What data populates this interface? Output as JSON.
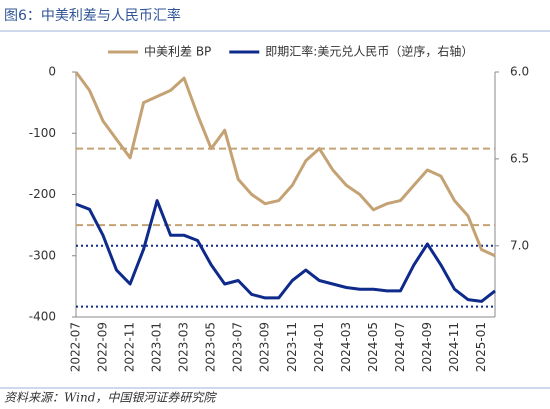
{
  "chart_data": {
    "type": "line",
    "title": "图6：中美利差与人民币汇率",
    "source": "资料来源：Wind，中国银河证券研究院",
    "categories": [
      "2022-07",
      null,
      "2022-09",
      null,
      "2022-11",
      null,
      "2023-01",
      null,
      "2023-03",
      null,
      "2023-05",
      null,
      "2023-07",
      null,
      "2023-09",
      null,
      "2023-11",
      null,
      "2024-01",
      null,
      "2024-03",
      null,
      "2024-05",
      null,
      "2024-07",
      null,
      "2024-09",
      null,
      "2024-11",
      null,
      "2025-01",
      null
    ],
    "series": [
      {
        "name": "中美利差 BP",
        "color": "#c4a273",
        "axis": "y",
        "values": [
          0,
          -30,
          -80,
          -110,
          -140,
          -50,
          -40,
          -30,
          -10,
          -70,
          -125,
          -95,
          -175,
          -200,
          -215,
          -210,
          -185,
          -145,
          -125,
          -160,
          -185,
          -200,
          -225,
          -215,
          -210,
          -185,
          -160,
          -170,
          -210,
          -235,
          -290,
          -300
        ]
      },
      {
        "name": "即期汇率:美元兑人民币（逆序，右轴）",
        "color": "#0e2a8a",
        "axis": "y2",
        "values": [
          6.76,
          6.79,
          6.94,
          7.14,
          7.22,
          7.02,
          6.74,
          6.94,
          6.94,
          6.97,
          7.11,
          7.22,
          7.2,
          7.28,
          7.3,
          7.3,
          7.2,
          7.14,
          7.2,
          7.22,
          7.24,
          7.25,
          7.25,
          7.26,
          7.26,
          7.11,
          6.99,
          7.11,
          7.25,
          7.31,
          7.32,
          7.26
        ]
      }
    ],
    "ylim": [
      -400,
      0
    ],
    "yticks": [
      0,
      -100,
      -200,
      -300,
      -400
    ],
    "y2lim": [
      6.0,
      7.41
    ],
    "y2_inverted": true,
    "y2ticks": [
      {
        "value": 6,
        "label": "6.0"
      },
      {
        "value": 6.5,
        "label": "6.5"
      },
      {
        "value": 7,
        "label": "7.0"
      }
    ],
    "reference_lines": [
      {
        "axis": "y",
        "value": -125,
        "style": "dashed",
        "color": "#c4a273"
      },
      {
        "axis": "y",
        "value": -250,
        "style": "dashed",
        "color": "#c4a273"
      },
      {
        "axis": "y2",
        "value": 7.0,
        "style": "dotted",
        "color": "#0e2a8a"
      },
      {
        "axis": "y2",
        "value": 7.35,
        "style": "dotted",
        "color": "#0e2a8a"
      }
    ],
    "legend": "top"
  }
}
